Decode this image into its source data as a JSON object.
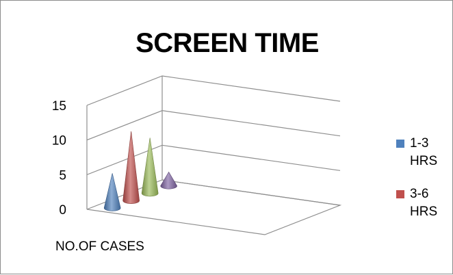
{
  "chart_data": {
    "type": "bar",
    "shape": "3d-cone",
    "title": "SCREEN TIME",
    "xlabel": "",
    "ylabel": "",
    "categories": [
      "NO.OF CASES"
    ],
    "ylim": [
      0,
      15
    ],
    "yticks": [
      0,
      5,
      10,
      15
    ],
    "grid": true,
    "legend_position": "right",
    "series": [
      {
        "name": "1-3 HRS",
        "values": [
          5
        ],
        "color": "#4F81BD",
        "in_legend": true
      },
      {
        "name": "3-6 HRS",
        "values": [
          10
        ],
        "color": "#C0504D",
        "in_legend": true
      },
      {
        "name": "",
        "values": [
          8
        ],
        "color": "#9BBB59",
        "in_legend": false
      },
      {
        "name": "",
        "values": [
          2
        ],
        "color": "#8064A2",
        "in_legend": false
      }
    ]
  }
}
